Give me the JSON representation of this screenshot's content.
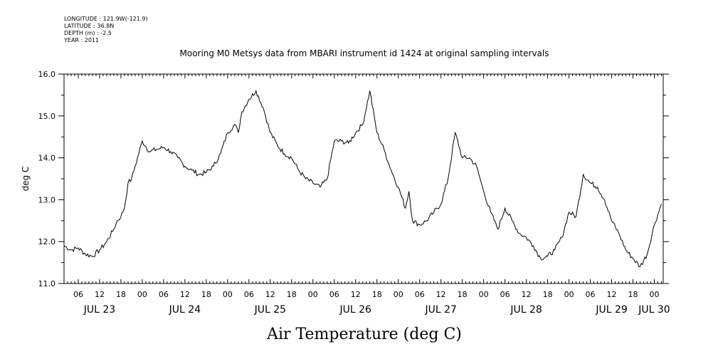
{
  "metadata": {
    "longitude": "LONGITUDE : 121.9W(-121.9)",
    "latitude": "LATITUDE : 36.8N",
    "depth": "DEPTH (m) : -2.5",
    "year": "YEAR : 2011"
  },
  "caption": "Air Temperature (deg C)",
  "chart_data": {
    "type": "line",
    "title": "Mooring M0 Metsys data from MBARI instrument id 1424 at original sampling intervals",
    "ylabel": "deg C",
    "xlabel": "",
    "ylim": [
      11.0,
      16.0
    ],
    "xlim": [
      2.0,
      170.5
    ],
    "x_unit": "hours since JUL 23 00:00",
    "y_ticks": [
      "11.0",
      "12.0",
      "13.0",
      "14.0",
      "15.0",
      "16.0"
    ],
    "hour_ticks": [
      "06",
      "12",
      "18",
      "00",
      "06",
      "12",
      "18",
      "00",
      "06",
      "12",
      "18",
      "00",
      "06",
      "12",
      "18",
      "00",
      "06",
      "12",
      "18",
      "00",
      "06",
      "12",
      "18",
      "00",
      "06",
      "12",
      "18",
      "00"
    ],
    "day_labels": [
      "JUL 23",
      "JUL 24",
      "JUL 25",
      "JUL 26",
      "JUL 27",
      "JUL 28",
      "JUL 29",
      "JUL 30"
    ],
    "grid": false,
    "series": [
      {
        "color": "#000000",
        "x": [
          2,
          4,
          6,
          8,
          10,
          12,
          14,
          16,
          17,
          18,
          19,
          20,
          21,
          22,
          24,
          26,
          28,
          30,
          32,
          34,
          36,
          38,
          40,
          42,
          44,
          46,
          48,
          50,
          51,
          52,
          54,
          56,
          58,
          60,
          62,
          64,
          66,
          68,
          70,
          72,
          74,
          76,
          78,
          80,
          82,
          84,
          86,
          88,
          90,
          92,
          94,
          96,
          98,
          99,
          100,
          102,
          104,
          106,
          108,
          110,
          112,
          114,
          116,
          118,
          119,
          120,
          122,
          124,
          126,
          128,
          130,
          132,
          134,
          136,
          138,
          140,
          142,
          144,
          146,
          148,
          150,
          152,
          154,
          156,
          158,
          160,
          162,
          164,
          166,
          168,
          170
        ],
        "y": [
          11.9,
          11.8,
          11.85,
          11.7,
          11.65,
          11.8,
          12.0,
          12.3,
          12.5,
          12.6,
          12.8,
          13.4,
          13.5,
          13.8,
          14.4,
          14.15,
          14.2,
          14.25,
          14.15,
          14.0,
          13.8,
          13.7,
          13.6,
          13.65,
          13.8,
          14.1,
          14.6,
          14.8,
          14.6,
          15.1,
          15.4,
          15.6,
          15.2,
          14.6,
          14.3,
          14.1,
          14.0,
          13.7,
          13.5,
          13.4,
          13.3,
          13.5,
          14.4,
          14.4,
          14.35,
          14.6,
          14.8,
          15.6,
          14.6,
          14.2,
          13.7,
          13.3,
          12.8,
          13.2,
          12.5,
          12.4,
          12.5,
          12.7,
          12.9,
          13.5,
          14.6,
          14.0,
          14.0,
          13.8,
          13.5,
          13.2,
          12.7,
          12.3,
          12.8,
          12.5,
          12.2,
          12.1,
          11.9,
          11.6,
          11.65,
          11.8,
          12.1,
          12.7,
          12.6,
          13.6,
          13.4,
          13.3,
          13.0,
          12.5,
          12.2,
          11.8,
          11.6,
          11.4,
          11.7,
          12.4,
          12.9
        ]
      }
    ]
  }
}
